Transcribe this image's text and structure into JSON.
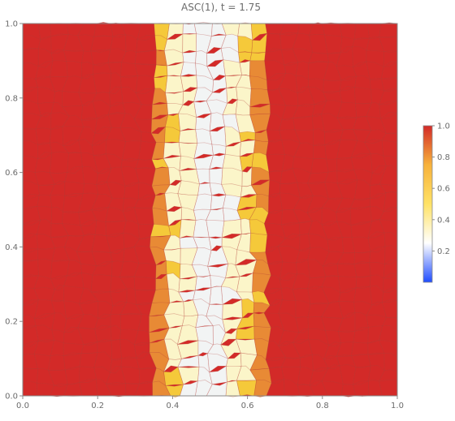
{
  "chart_data": {
    "type": "heatmap",
    "title": "ASC(1), t = 1.75",
    "xlabel": "",
    "ylabel": "",
    "xlim": [
      0.0,
      1.0
    ],
    "ylim": [
      0.0,
      1.0
    ],
    "x_ticks": [
      "0.0",
      "0.2",
      "0.4",
      "0.6",
      "0.8",
      "1.0"
    ],
    "y_ticks": [
      "0.0",
      "0.2",
      "0.4",
      "0.6",
      "0.8",
      "1.0"
    ],
    "x_tick_values": [
      0.0,
      0.2,
      0.4,
      0.6,
      0.8,
      1.0
    ],
    "y_tick_values": [
      0.0,
      0.2,
      0.4,
      0.6,
      0.8,
      1.0
    ],
    "grid": false,
    "mesh": "voronoi polygon cells",
    "field_profile_along_x": {
      "x": [
        0.0,
        0.34,
        0.35,
        0.355,
        0.38,
        0.42,
        0.47,
        0.5,
        0.53,
        0.58,
        0.62,
        0.645,
        0.65,
        0.66,
        1.0
      ],
      "value": [
        0.95,
        0.95,
        0.93,
        0.85,
        0.78,
        0.62,
        0.55,
        0.52,
        0.55,
        0.62,
        0.78,
        0.85,
        0.93,
        0.95,
        0.95
      ]
    },
    "colorbar": {
      "range": [
        0.0,
        1.0
      ],
      "ticks": [
        "0.2",
        "0.4",
        "0.6",
        "0.8",
        "1.0"
      ],
      "tick_values": [
        0.2,
        0.4,
        0.6,
        0.8,
        1.0
      ],
      "colors": [
        "#1f4cff",
        "#ffffff",
        "#ffe266",
        "#f7b23b",
        "#d32a28"
      ]
    },
    "colors": {
      "high": "#d32a28",
      "upper": "#e88a35",
      "mid": "#f5c93a",
      "light": "#fbf5c9",
      "low": "#f2f4f4",
      "frame": "#8a8a8a"
    }
  }
}
